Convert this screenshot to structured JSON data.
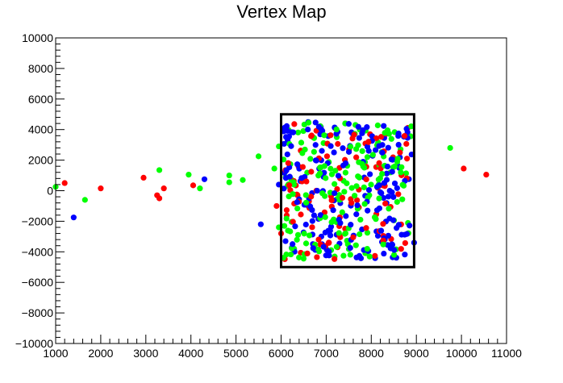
{
  "chart_data": {
    "type": "scatter",
    "title": "Vertex Map",
    "xlabel": "",
    "ylabel": "",
    "xlim": [
      1000,
      11000
    ],
    "ylim": [
      -10000,
      10000
    ],
    "x_ticks": [
      1000,
      2000,
      3000,
      4000,
      5000,
      6000,
      7000,
      8000,
      9000,
      10000,
      11000
    ],
    "x_tick_labels": [
      "1000",
      "2000",
      "3000",
      "4000",
      "5000",
      "6000",
      "7000",
      "8000",
      "9000",
      "10000",
      "11000"
    ],
    "y_ticks": [
      -10000,
      -8000,
      -6000,
      -4000,
      -2000,
      0,
      2000,
      4000,
      6000,
      8000,
      10000
    ],
    "y_tick_labels": [
      "−10000",
      "−8000",
      "−6000",
      "−4000",
      "−2000",
      "0",
      "2000",
      "4000",
      "6000",
      "8000",
      "10000"
    ],
    "grid": false,
    "box": {
      "x": [
        6000,
        8950
      ],
      "y": [
        -5000,
        5000
      ],
      "color": "#000000"
    },
    "cluster_region": {
      "x": [
        6050,
        8900
      ],
      "y": [
        -4500,
        4500
      ]
    },
    "series": [
      {
        "color": "#ff0000",
        "values": [
          [
            1200,
            500
          ],
          [
            2000,
            150
          ],
          [
            2950,
            850
          ],
          [
            3250,
            -300
          ],
          [
            3300,
            -500
          ],
          [
            3400,
            150
          ],
          [
            4050,
            350
          ],
          [
            5900,
            -1000
          ],
          [
            6000,
            -2800
          ],
          [
            10050,
            1450
          ],
          [
            10550,
            1050
          ]
        ]
      },
      {
        "color": "#00ff00",
        "values": [
          [
            1000,
            250
          ],
          [
            1650,
            -600
          ],
          [
            3300,
            1350
          ],
          [
            3950,
            1050
          ],
          [
            4200,
            150
          ],
          [
            4850,
            1000
          ],
          [
            4850,
            550
          ],
          [
            5150,
            700
          ],
          [
            5500,
            2250
          ],
          [
            5850,
            1450
          ],
          [
            5950,
            2900
          ],
          [
            5950,
            -2400
          ],
          [
            9750,
            2800
          ]
        ]
      },
      {
        "color": "#0000ff",
        "values": [
          [
            1400,
            -1750
          ],
          [
            4300,
            750
          ],
          [
            5550,
            -2200
          ],
          [
            5950,
            400
          ],
          [
            8950,
            -3400
          ]
        ]
      }
    ],
    "cluster_counts": {
      "#ff0000": 110,
      "#00ff00": 170,
      "#0000ff": 200
    }
  }
}
